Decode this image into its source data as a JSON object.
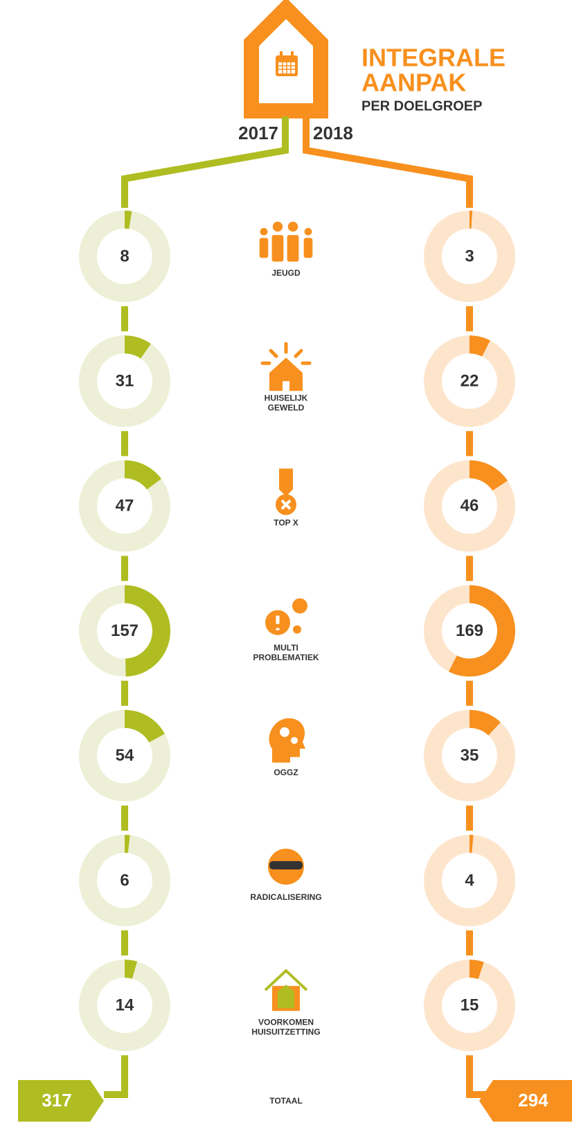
{
  "header": {
    "title_lines": [
      "INTEGRALE",
      "AANPAK"
    ],
    "subtitle": "PER DOELGROEP"
  },
  "years": [
    "2017",
    "2018"
  ],
  "groups": [
    {
      "label_lines": [
        "JEUGD"
      ],
      "values": [
        8,
        3
      ]
    },
    {
      "label_lines": [
        "HUISELIJK",
        "GEWELD"
      ],
      "values": [
        31,
        22
      ]
    },
    {
      "label_lines": [
        "TOP X"
      ],
      "values": [
        47,
        46
      ]
    },
    {
      "label_lines": [
        "MULTI",
        "PROBLEMATIEK"
      ],
      "values": [
        157,
        169
      ]
    },
    {
      "label_lines": [
        "OGGZ"
      ],
      "values": [
        54,
        35
      ]
    },
    {
      "label_lines": [
        "RADICALISERING"
      ],
      "values": [
        6,
        4
      ]
    },
    {
      "label_lines": [
        "VOORKOMEN",
        "HUISUITZETTING"
      ],
      "values": [
        14,
        15
      ]
    }
  ],
  "total": {
    "label": "TOTAAL",
    "values": [
      317,
      294
    ]
  }
}
